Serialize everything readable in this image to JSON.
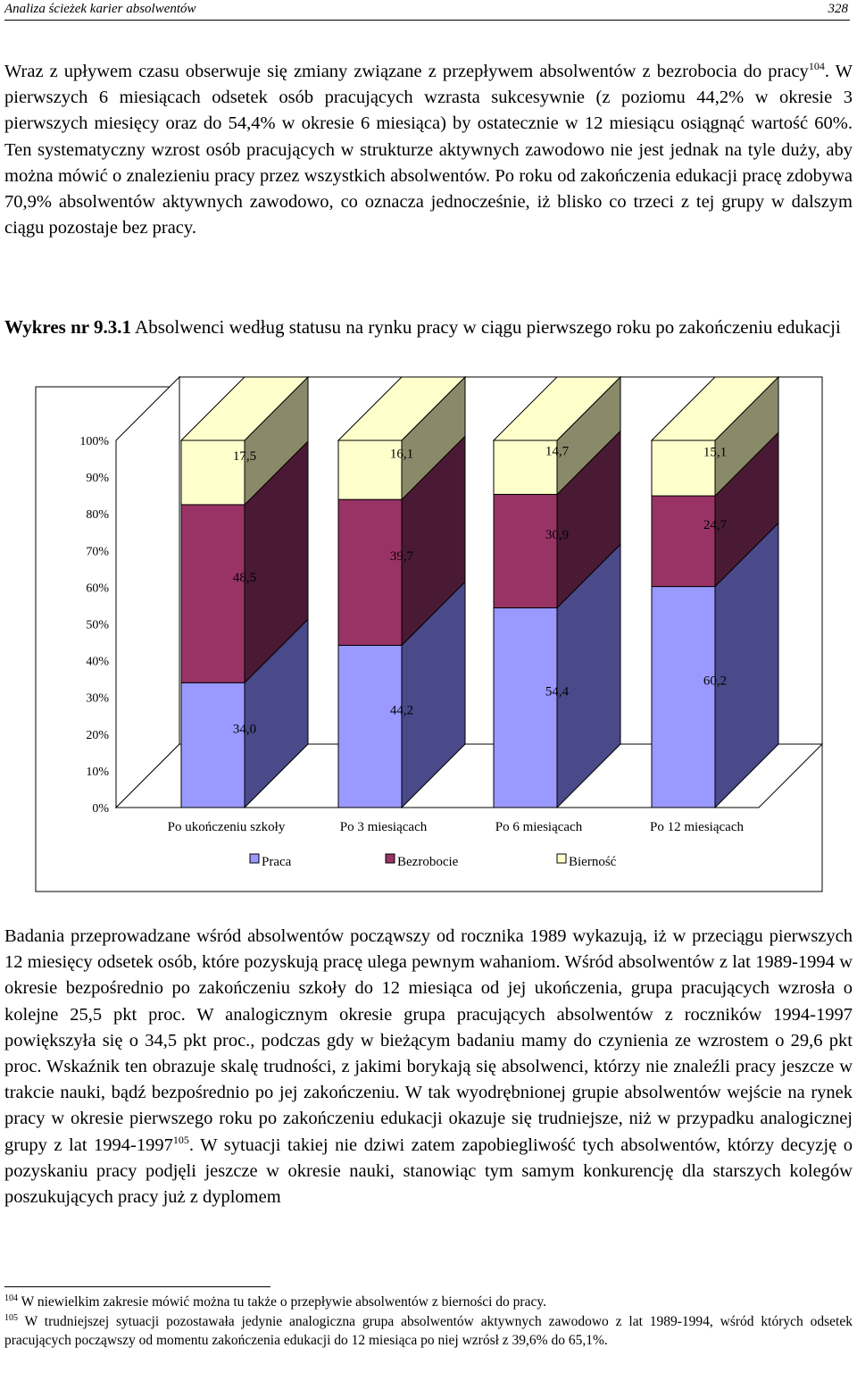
{
  "header": {
    "title": "Analiza ścieżek karier absolwentów",
    "page_number": "328"
  },
  "para1": {
    "before_ref": "Wraz z upływem czasu obserwuje się zmiany związane z przepływem absolwentów z bezrobocia do pracy",
    "ref": "104",
    "after_ref": ". W pierwszych 6 miesiącach odsetek osób pracujących wzrasta sukcesywnie (z poziomu 44,2% w okresie 3 pierwszych miesięcy oraz do 54,4% w okresie 6 miesiąca) by ostatecznie w 12 miesiącu osiągnąć wartość 60%. Ten systematyczny wzrost osób pracujących w strukturze aktywnych zawodowo nie jest jednak na tyle duży, aby można mówić o znalezieniu pracy przez wszystkich absolwentów. Po roku od zakończenia edukacji pracę zdobywa 70,9% absolwentów aktywnych zawodowo, co oznacza jednocześnie, iż blisko co trzeci z tej grupy w dalszym ciągu pozostaje bez pracy."
  },
  "caption": {
    "label": "Wykres nr 9.3.1",
    "text": " Absolwenci według statusu na rynku pracy w ciągu pierwszego roku po zakończeniu edukacji"
  },
  "chart_data": {
    "type": "bar",
    "stacked": true,
    "percent_stacked": true,
    "three_d": true,
    "categories": [
      "Po ukończeniu szkoły",
      "Po 3 miesiącach",
      "Po 6 miesiącach",
      "Po 12 miesiącach"
    ],
    "series": [
      {
        "name": "Praca",
        "values": [
          34.0,
          44.2,
          54.4,
          60.2
        ],
        "labels": [
          "34,0",
          "44,2",
          "54,4",
          "60,2"
        ],
        "color": "#9999ff",
        "side_color": "#4a4a8a"
      },
      {
        "name": "Bezrobocie",
        "values": [
          48.5,
          39.7,
          30.9,
          24.7
        ],
        "labels": [
          "48,5",
          "39,7",
          "30,9",
          "24,7"
        ],
        "color": "#993366",
        "side_color": "#4a1a35"
      },
      {
        "name": "Bierność",
        "values": [
          17.5,
          16.1,
          14.7,
          15.1
        ],
        "labels": [
          "17,5",
          "16,1",
          "14,7",
          "15,1"
        ],
        "color": "#ffffcc",
        "side_color": "#8a8a6a"
      }
    ],
    "y_ticks": [
      "0%",
      "10%",
      "20%",
      "30%",
      "40%",
      "50%",
      "60%",
      "70%",
      "80%",
      "90%",
      "100%"
    ],
    "ylim": [
      0,
      100
    ],
    "legend_position": "bottom",
    "grid": false
  },
  "para2": {
    "before_ref": "Badania przeprowadzane wśród absolwentów począwszy od rocznika 1989 wykazują, iż w przeciągu pierwszych 12 miesięcy odsetek osób, które pozyskują pracę ulega pewnym wahaniom. Wśród absolwentów z lat 1989-1994 w okresie bezpośrednio po zakończeniu szkoły do 12 miesiąca od jej ukończenia, grupa pracujących wzrosła o kolejne 25,5 pkt proc. W analogicznym okresie grupa pracujących absolwentów z roczników 1994-1997 powiększyła się o 34,5 pkt proc., podczas gdy w bieżącym badaniu mamy do czynienia ze wzrostem o 29,6 pkt proc. Wskaźnik ten obrazuje skalę trudności, z jakimi borykają się absolwenci, którzy nie znaleźli pracy jeszcze w trakcie nauki, bądź bezpośrednio po jej zakończeniu. W tak wyodrębnionej grupie absolwentów wejście na rynek pracy w okresie pierwszego roku po zakończeniu edukacji okazuje się trudniejsze, niż w przypadku analogicznej grupy z lat 1994-1997",
    "ref": "105",
    "after_ref": ". W sytuacji takiej nie dziwi zatem zapobiegliwość tych absolwentów, którzy decyzję o pozyskaniu pracy podjęli jeszcze w okresie nauki, stanowiąc tym samym konkurencję dla starszych kolegów poszukujących pracy już z dyplomem"
  },
  "footnotes": [
    {
      "num": "104",
      "text": " W niewielkim zakresie mówić można tu także o przepływie absolwentów z bierności do pracy."
    },
    {
      "num": "105",
      "text": "  W trudniejszej sytuacji pozostawała jedynie analogiczna grupa absolwentów aktywnych zawodowo z lat 1989-1994, wśród których odsetek pracujących począwszy od momentu zakończenia edukacji do 12 miesiąca po niej wzrósł z 39,6% do 65,1%."
    }
  ]
}
